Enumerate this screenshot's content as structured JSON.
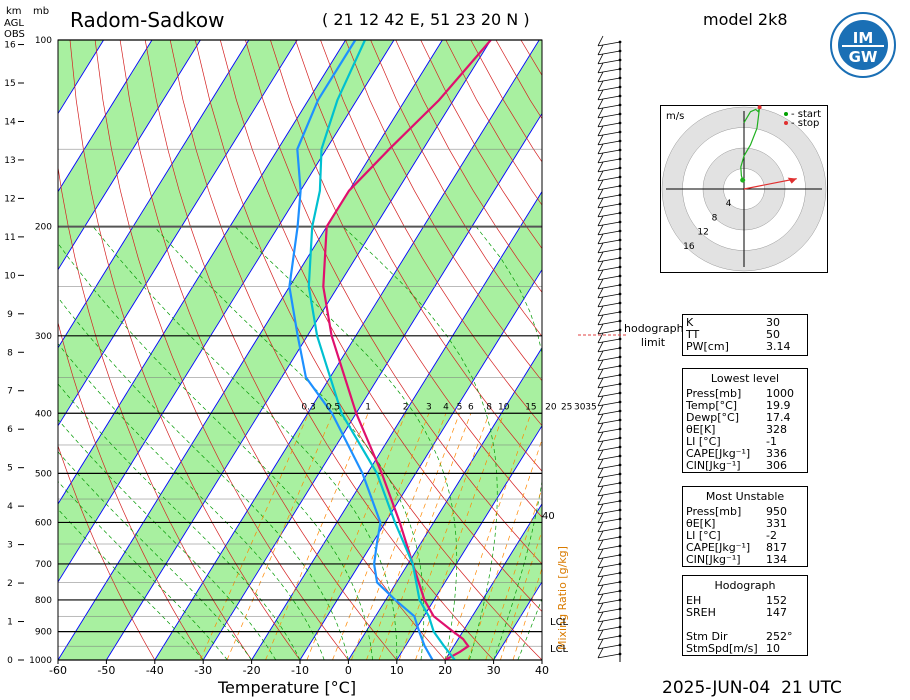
{
  "header": {
    "station": "Radom-Sadkow",
    "coords": "( 21 12 42 E, 51 23 20 N )",
    "model": "model 2k8",
    "km_label": "km",
    "mb_label": "mb",
    "agl_label": "AGL",
    "obs_label": "OBS"
  },
  "logo": {
    "text_top": "IM",
    "text_bottom": "GW",
    "primary_color": "#1a6fb5"
  },
  "footer": {
    "date": "2025-JUN-04",
    "time": "21 UTC"
  },
  "colors": {
    "temperature": "#e0106e",
    "dewpoint": "#1e90ff",
    "virtual": "#00c0d0",
    "dry_adiabat_band": "#a8f0a0",
    "isotherm": "#0000ff",
    "mixing_ratio": "#ff8800",
    "moist_adiabat": "#009900",
    "dry_adiabat": "#cc0000"
  },
  "chart_data": {
    "type": "line",
    "title": "Radom-Sadkow",
    "xlabel": "Temperature [°C]",
    "ylabel": "mb",
    "mixing_ratio_label": "Mixing Ratio [g/kg]",
    "x_ticks": [
      -60,
      -50,
      -40,
      -30,
      -20,
      -10,
      0,
      10,
      20,
      30,
      40
    ],
    "pressure_ticks": [
      100,
      200,
      300,
      400,
      500,
      600,
      700,
      800,
      900,
      1000
    ],
    "pressure_minor": [
      150,
      250,
      350,
      450,
      550,
      650,
      750,
      850,
      950
    ],
    "km_ticks": [
      0,
      1,
      2,
      3,
      4,
      5,
      6,
      7,
      8,
      9,
      10,
      11,
      12,
      13,
      14,
      15,
      16
    ],
    "mixing_ratio_values": [
      "0.3",
      "0.5",
      "1",
      "2",
      "3",
      "4",
      "5",
      "6",
      "8",
      "10",
      "15",
      "20",
      "25",
      "30",
      "35"
    ],
    "annotations": [
      "40",
      "LCL",
      "LCL"
    ],
    "series": [
      {
        "name": "Temperature",
        "points": [
          [
            1000,
            20
          ],
          [
            970,
            22
          ],
          [
            950,
            23
          ],
          [
            925,
            21
          ],
          [
            900,
            18
          ],
          [
            850,
            12
          ],
          [
            800,
            8
          ],
          [
            700,
            1
          ],
          [
            600,
            -7
          ],
          [
            500,
            -17
          ],
          [
            400,
            -30
          ],
          [
            300,
            -45
          ],
          [
            250,
            -53
          ],
          [
            200,
            -60
          ],
          [
            175,
            -60
          ],
          [
            150,
            -57
          ],
          [
            125,
            -53
          ],
          [
            100,
            -50
          ]
        ]
      },
      {
        "name": "Dewpoint",
        "points": [
          [
            1000,
            17.4
          ],
          [
            950,
            14
          ],
          [
            900,
            11
          ],
          [
            850,
            8
          ],
          [
            800,
            2
          ],
          [
            750,
            -4
          ],
          [
            700,
            -7
          ],
          [
            650,
            -9
          ],
          [
            600,
            -11
          ],
          [
            500,
            -21
          ],
          [
            400,
            -35
          ],
          [
            350,
            -45
          ],
          [
            300,
            -52
          ],
          [
            250,
            -60
          ],
          [
            200,
            -66
          ],
          [
            175,
            -70
          ],
          [
            150,
            -76
          ],
          [
            125,
            -78
          ],
          [
            100,
            -78
          ]
        ]
      },
      {
        "name": "Virtual",
        "points": [
          [
            1000,
            22
          ],
          [
            950,
            18
          ],
          [
            900,
            14
          ],
          [
            850,
            11
          ],
          [
            800,
            7
          ],
          [
            700,
            1
          ],
          [
            600,
            -8
          ],
          [
            500,
            -18
          ],
          [
            400,
            -33
          ],
          [
            300,
            -48
          ],
          [
            250,
            -56
          ],
          [
            200,
            -63
          ],
          [
            175,
            -66
          ],
          [
            150,
            -71
          ],
          [
            125,
            -74
          ],
          [
            100,
            -76
          ]
        ]
      }
    ]
  },
  "hodograph": {
    "unit": "m/s",
    "legend_start": "- start",
    "legend_stop": "- stop",
    "rings": [
      "4",
      "8",
      "12",
      "16"
    ],
    "points": [
      [
        0,
        60
      ],
      [
        10,
        70
      ],
      [
        18,
        72
      ],
      [
        22,
        70
      ],
      [
        24,
        74
      ],
      [
        20,
        55
      ],
      [
        10,
        40
      ],
      [
        0,
        30
      ],
      [
        -5,
        20
      ],
      [
        -4,
        12
      ],
      [
        -2,
        8
      ]
    ],
    "arrow_to": [
      17,
      13
    ]
  },
  "hodo_limit": "hodograph\nlimit",
  "index_panel": {
    "rows": [
      [
        "K",
        "30"
      ],
      [
        "TT",
        "50"
      ],
      [
        "PW[cm]",
        "3.14"
      ]
    ]
  },
  "lowest_level": {
    "title": "Lowest level",
    "rows": [
      [
        "Press[mb]",
        "1000"
      ],
      [
        "Temp[°C]",
        "19.9"
      ],
      [
        "Dewp[°C]",
        "17.4"
      ],
      [
        "θE[K]",
        "328"
      ],
      [
        "LI [°C]",
        "-1"
      ],
      [
        "CAPE[Jkg⁻¹]",
        "336"
      ],
      [
        "CIN[Jkg⁻¹]",
        "306"
      ]
    ]
  },
  "most_unstable": {
    "title": "Most Unstable",
    "rows": [
      [
        "Press[mb]",
        "950"
      ],
      [
        "θE[K]",
        "331"
      ],
      [
        "LI [°C]",
        "-2"
      ],
      [
        "CAPE[Jkg⁻¹]",
        "817"
      ],
      [
        "CIN[Jkg⁻¹]",
        "134"
      ]
    ]
  },
  "hodograph_panel": {
    "title": "Hodograph",
    "rows": [
      [
        "EH",
        "152"
      ],
      [
        "SREH",
        "147"
      ],
      [
        "",
        ""
      ],
      [
        "Stm Dir",
        "252°"
      ],
      [
        "StmSpd[m/s]",
        "10"
      ]
    ]
  }
}
